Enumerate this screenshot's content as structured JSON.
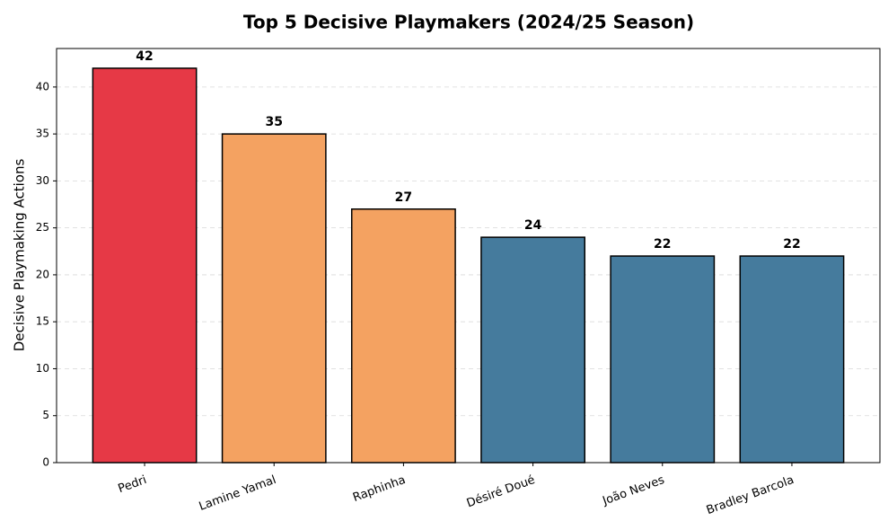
{
  "chart_data": {
    "type": "bar",
    "title": "Top 5 Decisive Playmakers (2024/25 Season)",
    "y_label": "Decisive Playmaking Actions",
    "categories": [
      "Pedri",
      "Lamine Yamal",
      "Raphinha",
      "Désiré Doué",
      "João Neves",
      "Bradley Barcola"
    ],
    "values": [
      42,
      35,
      27,
      24,
      22,
      22
    ],
    "colors": [
      "#e63946",
      "#f4a261",
      "#f4a261",
      "#457b9d",
      "#457b9d",
      "#457b9d"
    ],
    "ylim": [
      0,
      44.1
    ],
    "yticks": [
      0,
      5,
      10,
      15,
      20,
      25,
      30,
      35,
      40
    ],
    "grid": true
  }
}
